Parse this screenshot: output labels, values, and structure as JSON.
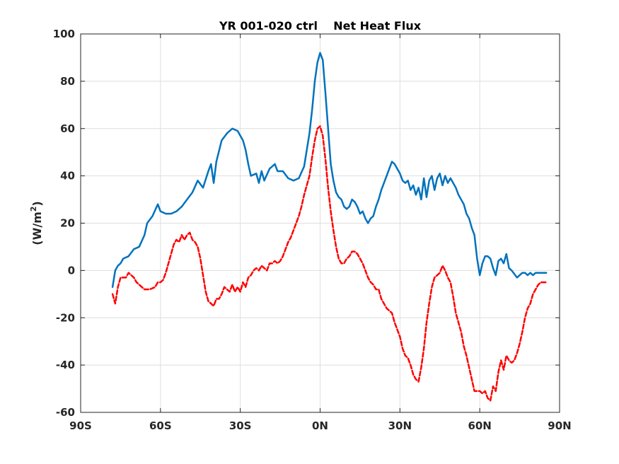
{
  "chart_data": {
    "type": "line",
    "title": "YR 001-020 ctrl    Net Heat Flux",
    "xlabel": "",
    "ylabel": "(W/m",
    "ylabel_superscript": "2",
    "ylabel_suffix": ")",
    "xlim": [
      -90,
      90
    ],
    "ylim": [
      -60,
      100
    ],
    "x_ticks": [
      -90,
      -60,
      -30,
      0,
      30,
      60,
      90
    ],
    "x_tick_labels": [
      "90S",
      "60S",
      "30S",
      "0N",
      "30N",
      "60N",
      "90N"
    ],
    "y_ticks": [
      -60,
      -40,
      -20,
      0,
      20,
      40,
      60,
      80,
      100
    ],
    "y_tick_labels": [
      "-60",
      "-40",
      "-20",
      "0",
      "20",
      "40",
      "60",
      "80",
      "100"
    ],
    "grid": true,
    "series": [
      {
        "color": "#0072BD",
        "style": "solid",
        "points": [
          [
            -78,
            -7
          ],
          [
            -77,
            0
          ],
          [
            -76,
            2
          ],
          [
            -75,
            3
          ],
          [
            -74,
            5
          ],
          [
            -72,
            6
          ],
          [
            -70,
            9
          ],
          [
            -68,
            10
          ],
          [
            -66,
            15
          ],
          [
            -65,
            20
          ],
          [
            -63,
            23
          ],
          [
            -61,
            28
          ],
          [
            -60,
            25
          ],
          [
            -58,
            24
          ],
          [
            -56,
            24
          ],
          [
            -54,
            25
          ],
          [
            -52,
            27
          ],
          [
            -50,
            30
          ],
          [
            -48,
            33
          ],
          [
            -46,
            38
          ],
          [
            -44,
            35
          ],
          [
            -42,
            42
          ],
          [
            -41,
            45
          ],
          [
            -40,
            37
          ],
          [
            -39,
            46
          ],
          [
            -37,
            55
          ],
          [
            -35,
            58
          ],
          [
            -33,
            60
          ],
          [
            -31,
            59
          ],
          [
            -29,
            55
          ],
          [
            -28,
            51
          ],
          [
            -27,
            45
          ],
          [
            -26,
            40
          ],
          [
            -24,
            41
          ],
          [
            -23,
            37
          ],
          [
            -22,
            42
          ],
          [
            -21,
            38
          ],
          [
            -19,
            43
          ],
          [
            -17,
            45
          ],
          [
            -16,
            42
          ],
          [
            -14,
            42
          ],
          [
            -12,
            39
          ],
          [
            -10,
            38
          ],
          [
            -8,
            39
          ],
          [
            -6,
            44
          ],
          [
            -5,
            51
          ],
          [
            -4,
            58
          ],
          [
            -3,
            68
          ],
          [
            -2,
            80
          ],
          [
            -1,
            88
          ],
          [
            0,
            92
          ],
          [
            1,
            89
          ],
          [
            2,
            75
          ],
          [
            3,
            60
          ],
          [
            4,
            45
          ],
          [
            5,
            38
          ],
          [
            6,
            33
          ],
          [
            7,
            31
          ],
          [
            8,
            30
          ],
          [
            9,
            27
          ],
          [
            10,
            26
          ],
          [
            11,
            27
          ],
          [
            12,
            30
          ],
          [
            13,
            29
          ],
          [
            14,
            27
          ],
          [
            15,
            24
          ],
          [
            16,
            25
          ],
          [
            17,
            22
          ],
          [
            18,
            20
          ],
          [
            19,
            22
          ],
          [
            20,
            23
          ],
          [
            21,
            27
          ],
          [
            22,
            30
          ],
          [
            23,
            34
          ],
          [
            24,
            37
          ],
          [
            25,
            40
          ],
          [
            26,
            43
          ],
          [
            27,
            46
          ],
          [
            28,
            45
          ],
          [
            29,
            43
          ],
          [
            30,
            41
          ],
          [
            31,
            38
          ],
          [
            32,
            37
          ],
          [
            33,
            38
          ],
          [
            34,
            34
          ],
          [
            35,
            36
          ],
          [
            36,
            32
          ],
          [
            37,
            35
          ],
          [
            38,
            30
          ],
          [
            39,
            39
          ],
          [
            40,
            31
          ],
          [
            41,
            38
          ],
          [
            42,
            40
          ],
          [
            43,
            34
          ],
          [
            44,
            39
          ],
          [
            45,
            41
          ],
          [
            46,
            36
          ],
          [
            47,
            40
          ],
          [
            48,
            37
          ],
          [
            49,
            39
          ],
          [
            50,
            37
          ],
          [
            51,
            35
          ],
          [
            52,
            32
          ],
          [
            53,
            30
          ],
          [
            54,
            28
          ],
          [
            55,
            24
          ],
          [
            56,
            22
          ],
          [
            57,
            18
          ],
          [
            58,
            15
          ],
          [
            59,
            5
          ],
          [
            60,
            -2
          ],
          [
            61,
            3
          ],
          [
            62,
            6
          ],
          [
            63,
            6
          ],
          [
            64,
            5
          ],
          [
            65,
            1
          ],
          [
            66,
            -2
          ],
          [
            67,
            4
          ],
          [
            68,
            5
          ],
          [
            69,
            3
          ],
          [
            70,
            7
          ],
          [
            71,
            1
          ],
          [
            72,
            0
          ],
          [
            74,
            -3
          ],
          [
            75,
            -2
          ],
          [
            76,
            -1
          ],
          [
            77,
            -1
          ],
          [
            78,
            -2
          ],
          [
            79,
            -1
          ],
          [
            80,
            -2
          ],
          [
            81,
            -1
          ],
          [
            82,
            -1
          ],
          [
            83,
            -1
          ],
          [
            84,
            -1
          ],
          [
            85,
            -1
          ]
        ]
      },
      {
        "color": "#FF0000",
        "style": "dashed",
        "points": [
          [
            -78,
            -10
          ],
          [
            -77,
            -14
          ],
          [
            -76,
            -7
          ],
          [
            -75,
            -3
          ],
          [
            -74,
            -3
          ],
          [
            -73,
            -3
          ],
          [
            -72,
            -1
          ],
          [
            -71,
            -2
          ],
          [
            -70,
            -3
          ],
          [
            -69,
            -5
          ],
          [
            -68,
            -6
          ],
          [
            -67,
            -7
          ],
          [
            -66,
            -8
          ],
          [
            -64,
            -8
          ],
          [
            -62,
            -7
          ],
          [
            -61,
            -5
          ],
          [
            -60,
            -5
          ],
          [
            -59,
            -4
          ],
          [
            -58,
            -1
          ],
          [
            -57,
            3
          ],
          [
            -56,
            7
          ],
          [
            -55,
            11
          ],
          [
            -54,
            13
          ],
          [
            -53,
            12
          ],
          [
            -52,
            15
          ],
          [
            -51,
            13
          ],
          [
            -50,
            15
          ],
          [
            -49,
            16
          ],
          [
            -48,
            13
          ],
          [
            -47,
            12
          ],
          [
            -46,
            10
          ],
          [
            -45,
            5
          ],
          [
            -44,
            -2
          ],
          [
            -43,
            -9
          ],
          [
            -42,
            -13
          ],
          [
            -41,
            -14
          ],
          [
            -40,
            -15
          ],
          [
            -39,
            -12
          ],
          [
            -38,
            -12
          ],
          [
            -37,
            -10
          ],
          [
            -36,
            -7
          ],
          [
            -35,
            -8
          ],
          [
            -34,
            -9
          ],
          [
            -33,
            -6
          ],
          [
            -32,
            -9
          ],
          [
            -31,
            -7
          ],
          [
            -30,
            -9
          ],
          [
            -29,
            -5
          ],
          [
            -28,
            -7
          ],
          [
            -27,
            -3
          ],
          [
            -26,
            -2
          ],
          [
            -25,
            0
          ],
          [
            -24,
            1
          ],
          [
            -23,
            0
          ],
          [
            -22,
            2
          ],
          [
            -20,
            0
          ],
          [
            -19,
            3
          ],
          [
            -18,
            3
          ],
          [
            -17,
            4
          ],
          [
            -16,
            3
          ],
          [
            -15,
            4
          ],
          [
            -14,
            6
          ],
          [
            -13,
            9
          ],
          [
            -12,
            12
          ],
          [
            -11,
            14
          ],
          [
            -10,
            17
          ],
          [
            -9,
            20
          ],
          [
            -8,
            23
          ],
          [
            -7,
            27
          ],
          [
            -6,
            32
          ],
          [
            -5,
            36
          ],
          [
            -4,
            40
          ],
          [
            -3,
            48
          ],
          [
            -2,
            55
          ],
          [
            -1,
            60
          ],
          [
            0,
            61
          ],
          [
            1,
            57
          ],
          [
            2,
            47
          ],
          [
            3,
            35
          ],
          [
            4,
            25
          ],
          [
            5,
            17
          ],
          [
            6,
            10
          ],
          [
            7,
            5
          ],
          [
            8,
            3
          ],
          [
            9,
            3
          ],
          [
            10,
            5
          ],
          [
            11,
            6
          ],
          [
            12,
            8
          ],
          [
            13,
            8
          ],
          [
            14,
            7
          ],
          [
            15,
            5
          ],
          [
            16,
            3
          ],
          [
            17,
            0
          ],
          [
            18,
            -3
          ],
          [
            19,
            -5
          ],
          [
            20,
            -6
          ],
          [
            21,
            -8
          ],
          [
            22,
            -8
          ],
          [
            23,
            -12
          ],
          [
            24,
            -14
          ],
          [
            25,
            -16
          ],
          [
            26,
            -17
          ],
          [
            27,
            -18
          ],
          [
            28,
            -22
          ],
          [
            29,
            -25
          ],
          [
            30,
            -28
          ],
          [
            31,
            -33
          ],
          [
            32,
            -36
          ],
          [
            33,
            -37
          ],
          [
            34,
            -40
          ],
          [
            35,
            -44
          ],
          [
            36,
            -46
          ],
          [
            37,
            -47
          ],
          [
            38,
            -41
          ],
          [
            39,
            -33
          ],
          [
            40,
            -22
          ],
          [
            41,
            -14
          ],
          [
            42,
            -7
          ],
          [
            43,
            -3
          ],
          [
            44,
            -2
          ],
          [
            45,
            -1
          ],
          [
            46,
            2
          ],
          [
            47,
            0
          ],
          [
            48,
            -3
          ],
          [
            49,
            -5
          ],
          [
            50,
            -11
          ],
          [
            51,
            -18
          ],
          [
            52,
            -22
          ],
          [
            53,
            -26
          ],
          [
            54,
            -32
          ],
          [
            55,
            -36
          ],
          [
            56,
            -41
          ],
          [
            57,
            -46
          ],
          [
            58,
            -51
          ],
          [
            59,
            -51
          ],
          [
            60,
            -51
          ],
          [
            61,
            -52
          ],
          [
            62,
            -51
          ],
          [
            63,
            -54
          ],
          [
            64,
            -55
          ],
          [
            65,
            -49
          ],
          [
            66,
            -51
          ],
          [
            67,
            -43
          ],
          [
            68,
            -38
          ],
          [
            69,
            -42
          ],
          [
            70,
            -36
          ],
          [
            71,
            -38
          ],
          [
            72,
            -39
          ],
          [
            73,
            -38
          ],
          [
            74,
            -35
          ],
          [
            75,
            -31
          ],
          [
            76,
            -26
          ],
          [
            77,
            -20
          ],
          [
            78,
            -16
          ],
          [
            79,
            -14
          ],
          [
            80,
            -10
          ],
          [
            81,
            -8
          ],
          [
            82,
            -6
          ],
          [
            83,
            -5
          ],
          [
            84,
            -5
          ],
          [
            85,
            -5
          ]
        ]
      }
    ]
  }
}
